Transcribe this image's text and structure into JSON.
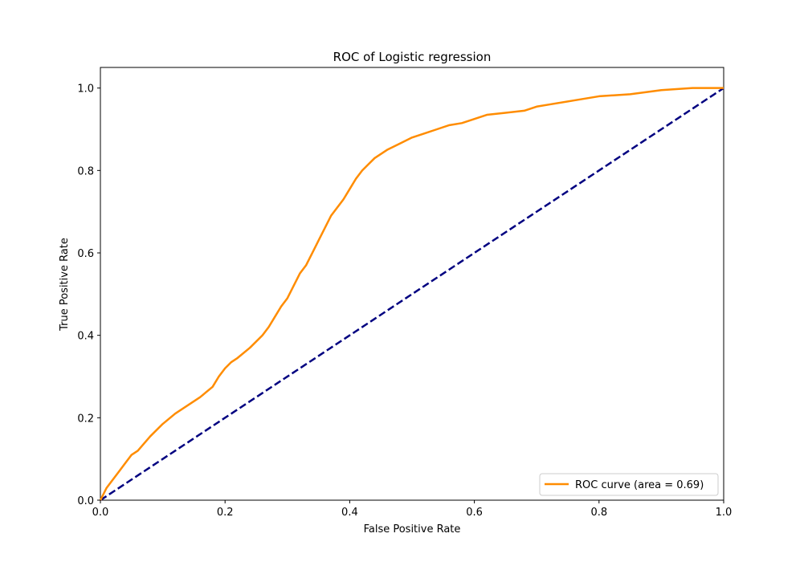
{
  "chart_data": {
    "type": "line",
    "title": "ROC of Logistic regression",
    "xlabel": "False Positive Rate",
    "ylabel": "True Positive Rate",
    "xlim": [
      0.0,
      1.0
    ],
    "ylim": [
      0.0,
      1.05
    ],
    "x_ticks": [
      "0.0",
      "0.2",
      "0.4",
      "0.6",
      "0.8",
      "1.0"
    ],
    "y_ticks": [
      "0.0",
      "0.2",
      "0.4",
      "0.6",
      "0.8",
      "1.0"
    ],
    "legend_position": "lower right",
    "grid": false,
    "series": [
      {
        "name": "ROC curve (area = 0.69)",
        "color": "#ff8c00",
        "style": "solid",
        "x": [
          0.0,
          0.01,
          0.02,
          0.03,
          0.04,
          0.05,
          0.06,
          0.08,
          0.1,
          0.12,
          0.14,
          0.16,
          0.18,
          0.19,
          0.2,
          0.21,
          0.22,
          0.24,
          0.26,
          0.27,
          0.28,
          0.29,
          0.3,
          0.31,
          0.32,
          0.33,
          0.34,
          0.35,
          0.36,
          0.37,
          0.38,
          0.39,
          0.4,
          0.41,
          0.42,
          0.43,
          0.44,
          0.46,
          0.48,
          0.5,
          0.52,
          0.54,
          0.56,
          0.58,
          0.6,
          0.62,
          0.65,
          0.68,
          0.7,
          0.72,
          0.76,
          0.8,
          0.85,
          0.9,
          0.95,
          1.0
        ],
        "y": [
          0.0,
          0.03,
          0.05,
          0.07,
          0.09,
          0.11,
          0.12,
          0.155,
          0.185,
          0.21,
          0.23,
          0.25,
          0.275,
          0.3,
          0.32,
          0.335,
          0.345,
          0.37,
          0.4,
          0.42,
          0.445,
          0.47,
          0.49,
          0.52,
          0.55,
          0.57,
          0.6,
          0.63,
          0.66,
          0.69,
          0.71,
          0.73,
          0.755,
          0.78,
          0.8,
          0.815,
          0.83,
          0.85,
          0.865,
          0.88,
          0.89,
          0.9,
          0.91,
          0.915,
          0.925,
          0.935,
          0.94,
          0.945,
          0.955,
          0.96,
          0.97,
          0.98,
          0.985,
          0.995,
          1.0,
          1.0
        ]
      },
      {
        "name": "",
        "color": "#000080",
        "style": "dashed",
        "x": [
          0.0,
          1.0
        ],
        "y": [
          0.0,
          1.0
        ]
      }
    ]
  }
}
